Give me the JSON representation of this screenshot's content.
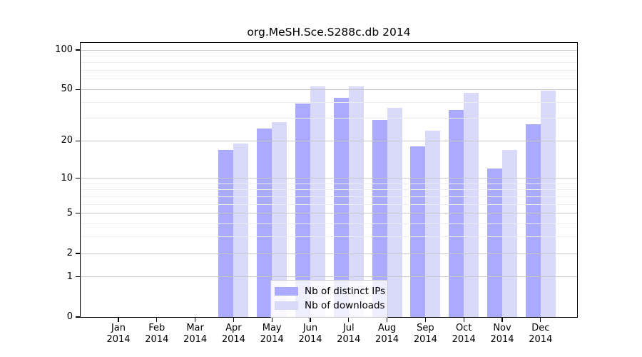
{
  "title": "org.MeSH.Sce.S288c.db 2014",
  "legend": {
    "items": [
      {
        "label": "Nb of distinct IPs",
        "color": "#aaaaff"
      },
      {
        "label": "Nb of downloads",
        "color": "#d9d9fa"
      }
    ]
  },
  "colors": {
    "frame": "#000000",
    "major_grid": "#c8c8c8",
    "minor_grid": "#ececec",
    "background": "#ffffff"
  },
  "chart_data": {
    "type": "bar",
    "title": "org.MeSH.Sce.S288c.db 2014",
    "categories": [
      "Jan 2014",
      "Feb 2014",
      "Mar 2014",
      "Apr 2014",
      "May 2014",
      "Jun 2014",
      "Jul 2014",
      "Aug 2014",
      "Sep 2014",
      "Oct 2014",
      "Nov 2014",
      "Dec 2014"
    ],
    "series": [
      {
        "name": "Nb of distinct IPs",
        "color": "#aaaaff",
        "values": [
          0,
          0,
          0,
          17,
          25,
          39,
          43,
          29,
          18,
          35,
          12,
          27
        ]
      },
      {
        "name": "Nb of downloads",
        "color": "#d9d9fa",
        "values": [
          0,
          0,
          0,
          19,
          28,
          53,
          53,
          36,
          24,
          47,
          17,
          49
        ]
      }
    ],
    "xlabel": "",
    "ylabel": "",
    "yscale": "log1p",
    "ylim": [
      0,
      100
    ],
    "ytick_values": [
      0,
      1,
      2,
      5,
      10,
      20,
      50,
      100
    ],
    "ytick_labels": [
      "0",
      "1",
      "2",
      "5",
      "10",
      "20",
      "50",
      "100"
    ],
    "minor_grid_values": [
      3,
      4,
      6,
      7,
      8,
      9,
      30,
      40,
      60,
      70,
      80,
      90
    ],
    "grid": true,
    "legend_position": "bottom-center"
  }
}
